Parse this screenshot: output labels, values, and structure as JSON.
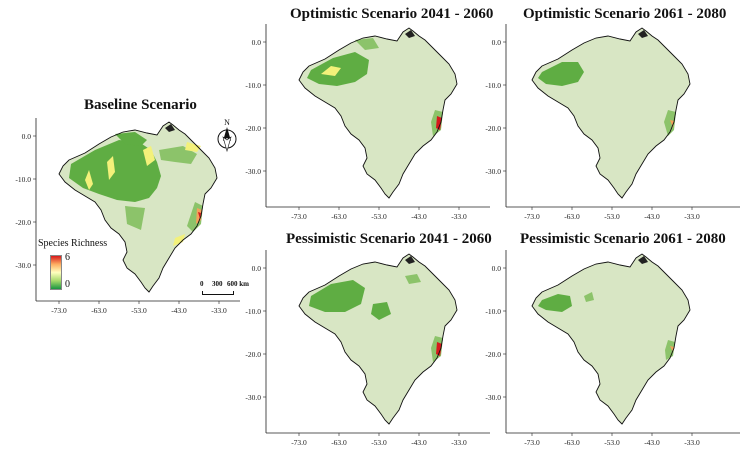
{
  "baseline": {
    "title": "Baseline Scenario",
    "x_ticks": [
      "-73.0",
      "-63.0",
      "-53.0",
      "-43.0",
      "-33.0"
    ],
    "y_ticks": [
      "0.0",
      "-10.0",
      "-20.0",
      "-30.0"
    ]
  },
  "legend": {
    "title": "Species Richness",
    "max_label": "6",
    "min_label": "0",
    "colors": [
      "#d7191c",
      "#fdae61",
      "#ffffbf",
      "#a6d96a",
      "#1a9641"
    ]
  },
  "north_arrow": {
    "label": "N"
  },
  "scalebar": {
    "ticks": [
      "0",
      "300",
      "600 km"
    ]
  },
  "panels": [
    {
      "title": "Optimistic Scenario 2041 - 2060"
    },
    {
      "title": "Optimistic Scenario 2061 - 2080"
    },
    {
      "title": "Pessimistic Scenario 2041 - 2060"
    },
    {
      "title": "Pessimistic Scenario 2061 - 2080"
    }
  ],
  "panel_axes": {
    "x_ticks": [
      "-73.0",
      "-63.0",
      "-53.0",
      "-43.0",
      "-33.0"
    ],
    "y_ticks": [
      "0.0",
      "-10.0",
      "-20.0",
      "-30.0"
    ]
  },
  "colors": {
    "base_land": "#d8e6c4",
    "high_green": "#5fad43",
    "mid_green": "#8cc36a",
    "yellow": "#f3f17a",
    "orange": "#f5a25c",
    "red": "#d7191c",
    "outline": "#111111"
  }
}
